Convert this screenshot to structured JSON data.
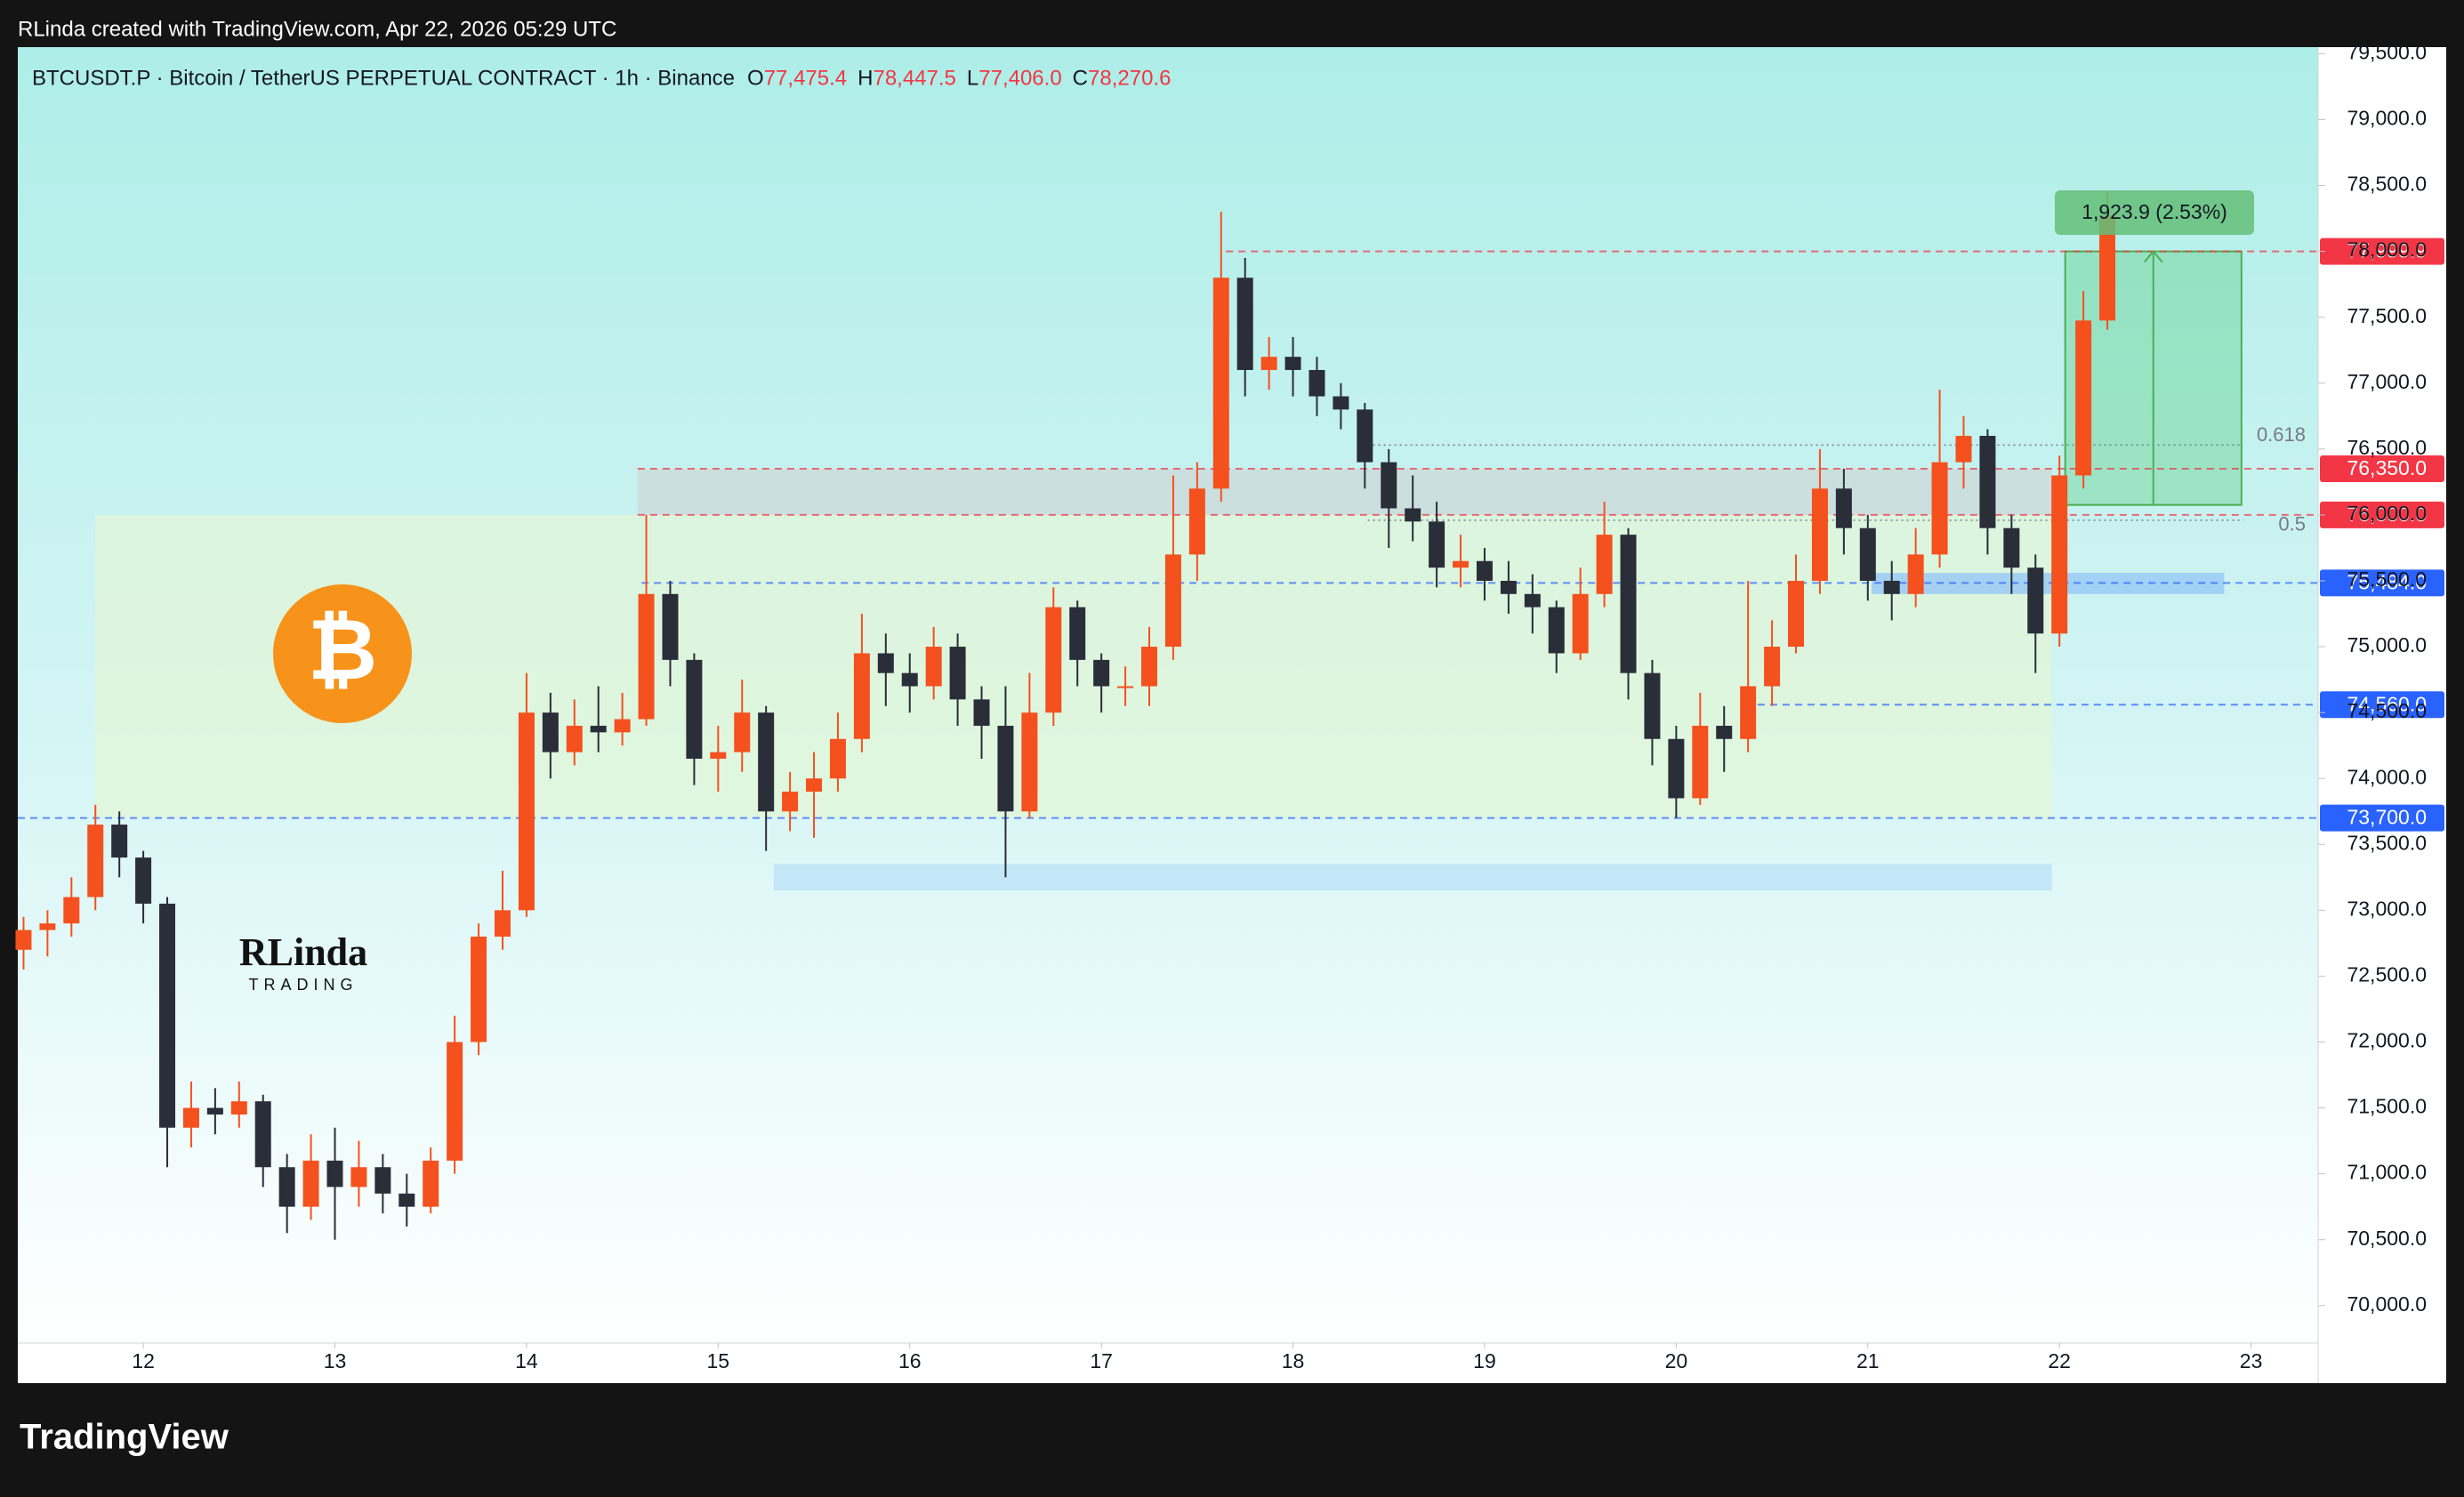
{
  "header": {
    "attribution": "RLinda created with TradingView.com, Apr 22, 2026 05:29 UTC",
    "symbol": "BTCUSDT.P · Bitcoin / TetherUS PERPETUAL CONTRACT · 1h · Binance",
    "ohlc": [
      {
        "key": "O",
        "value": "77,475.4"
      },
      {
        "key": "H",
        "value": "78,447.5"
      },
      {
        "key": "L",
        "value": "77,406.0"
      },
      {
        "key": "C",
        "value": "78,270.6"
      }
    ]
  },
  "watermark": {
    "icon": "₿",
    "name": "RLinda",
    "sub": "TRADING"
  },
  "footer": {
    "logo": "TradingView"
  },
  "chart_data": {
    "type": "candlestick",
    "up_color": "#f4511e",
    "down_color": "#2a2e39",
    "xlim": [
      11.345,
      23.35
    ],
    "ylim": [
      69715,
      79550
    ],
    "xticks": [
      12,
      13,
      14,
      15,
      16,
      17,
      18,
      19,
      20,
      21,
      22,
      23
    ],
    "yticks": [
      {
        "value": 70000,
        "label": "70,000.0"
      },
      {
        "value": 70500,
        "label": "70,500.0"
      },
      {
        "value": 71000,
        "label": "71,000.0"
      },
      {
        "value": 71500,
        "label": "71,500.0"
      },
      {
        "value": 72000,
        "label": "72,000.0"
      },
      {
        "value": 72500,
        "label": "72,500.0"
      },
      {
        "value": 73000,
        "label": "73,000.0"
      },
      {
        "value": 73500,
        "label": "73,500.0"
      },
      {
        "value": 74000,
        "label": "74,000.0"
      },
      {
        "value": 74500,
        "label": "74,500.0"
      },
      {
        "value": 75000,
        "label": "75,000.0"
      },
      {
        "value": 75500,
        "label": "75,500.0"
      },
      {
        "value": 76000,
        "label": "76,000.0"
      },
      {
        "value": 76500,
        "label": "76,500.0"
      },
      {
        "value": 77000,
        "label": "77,000.0"
      },
      {
        "value": 77500,
        "label": "77,500.0"
      },
      {
        "value": 78000,
        "label": "78,000.0"
      },
      {
        "value": 78500,
        "label": "78,500.0"
      },
      {
        "value": 79000,
        "label": "79,000.0"
      },
      {
        "value": 79500,
        "label": "79,500.0"
      }
    ],
    "x": [
      11.375,
      11.5,
      11.625,
      11.75,
      11.875,
      12.0,
      12.125,
      12.25,
      12.375,
      12.5,
      12.625,
      12.75,
      12.875,
      13.0,
      13.125,
      13.25,
      13.375,
      13.5,
      13.625,
      13.75,
      13.875,
      14.0,
      14.125,
      14.25,
      14.375,
      14.5,
      14.625,
      14.75,
      14.875,
      15.0,
      15.125,
      15.25,
      15.375,
      15.5,
      15.625,
      15.75,
      15.875,
      16.0,
      16.125,
      16.25,
      16.375,
      16.5,
      16.625,
      16.75,
      16.875,
      17.0,
      17.125,
      17.25,
      17.375,
      17.5,
      17.625,
      17.75,
      17.875,
      18.0,
      18.125,
      18.25,
      18.375,
      18.5,
      18.625,
      18.75,
      18.875,
      19.0,
      19.125,
      19.25,
      19.375,
      19.5,
      19.625,
      19.75,
      19.875,
      20.0,
      20.125,
      20.25,
      20.375,
      20.5,
      20.625,
      20.75,
      20.875,
      21.0,
      21.125,
      21.25,
      21.375,
      21.5,
      21.625,
      21.75,
      21.875,
      22.0,
      22.125,
      22.25
    ],
    "open": [
      72700,
      72850,
      72900,
      73100,
      73650,
      73400,
      73050,
      71350,
      71500,
      71450,
      71550,
      71050,
      70750,
      71100,
      70900,
      71050,
      70850,
      70750,
      71100,
      72000,
      72800,
      73000,
      74500,
      74200,
      74400,
      74350,
      74450,
      75400,
      74900,
      74150,
      74200,
      74500,
      73750,
      73900,
      74000,
      74300,
      74950,
      74800,
      74700,
      75000,
      74600,
      74400,
      73750,
      74500,
      75300,
      74900,
      74700,
      74700,
      75000,
      75700,
      76200,
      77800,
      77100,
      77200,
      77100,
      76900,
      76800,
      76400,
      76050,
      75950,
      75600,
      75650,
      75500,
      75400,
      75300,
      74950,
      75400,
      75850,
      74800,
      74300,
      73850,
      74400,
      74300,
      74700,
      75000,
      75500,
      76200,
      75900,
      75500,
      75400,
      75700,
      76400,
      76600,
      75900,
      75600,
      75100,
      76300,
      77475.4
    ],
    "high": [
      72950,
      73000,
      73250,
      73800,
      73750,
      73450,
      73100,
      71700,
      71650,
      71700,
      71600,
      71150,
      71300,
      71350,
      71250,
      71150,
      71000,
      71200,
      72200,
      72900,
      73300,
      74800,
      74650,
      74600,
      74700,
      74650,
      76000,
      75500,
      74950,
      74400,
      74750,
      74550,
      74050,
      74200,
      74500,
      75250,
      75100,
      74950,
      75150,
      75100,
      74700,
      74700,
      74800,
      75450,
      75350,
      74950,
      74850,
      75150,
      76300,
      76400,
      78300,
      77950,
      77350,
      77350,
      77200,
      77000,
      76850,
      76500,
      76300,
      76100,
      75850,
      75750,
      75650,
      75550,
      75350,
      75600,
      76100,
      75900,
      74900,
      74400,
      74650,
      74550,
      75500,
      75200,
      75700,
      76500,
      76350,
      76000,
      75650,
      75900,
      76950,
      76750,
      76650,
      76000,
      75700,
      76450,
      77700,
      78447.5
    ],
    "low": [
      72550,
      72650,
      72800,
      73000,
      73250,
      72900,
      71050,
      71200,
      71300,
      71350,
      70900,
      70550,
      70650,
      70500,
      70750,
      70700,
      70600,
      70700,
      71000,
      71900,
      72700,
      72950,
      74000,
      74100,
      74200,
      74250,
      74400,
      74700,
      73950,
      73900,
      74050,
      73450,
      73600,
      73550,
      73900,
      74200,
      74550,
      74500,
      74600,
      74400,
      74150,
      73250,
      73700,
      74400,
      74700,
      74500,
      74550,
      74550,
      74900,
      75500,
      76100,
      76900,
      76950,
      76900,
      76750,
      76650,
      76200,
      75750,
      75800,
      75450,
      75450,
      75350,
      75250,
      75100,
      74800,
      74900,
      75300,
      74600,
      74100,
      73700,
      73800,
      74050,
      74200,
      74550,
      74950,
      75400,
      75700,
      75350,
      75200,
      75300,
      75600,
      76200,
      75700,
      75400,
      74800,
      75000,
      76200,
      77406
    ],
    "close": [
      72850,
      72900,
      73100,
      73650,
      73400,
      73050,
      71350,
      71500,
      71450,
      71550,
      71050,
      70750,
      71100,
      70900,
      71050,
      70850,
      70750,
      71100,
      72000,
      72800,
      73000,
      74500,
      74200,
      74400,
      74350,
      74450,
      75400,
      74900,
      74150,
      74200,
      74500,
      73750,
      73900,
      74000,
      74300,
      74950,
      74800,
      74700,
      75000,
      74600,
      74400,
      73750,
      74500,
      75300,
      74900,
      74700,
      74700,
      75000,
      75700,
      76200,
      77800,
      77100,
      77200,
      77100,
      76900,
      76800,
      76400,
      76050,
      75950,
      75600,
      75650,
      75500,
      75400,
      75300,
      74950,
      75400,
      75850,
      74800,
      74300,
      73850,
      74400,
      74300,
      74700,
      75000,
      75500,
      76200,
      75900,
      75500,
      75400,
      75700,
      76400,
      76600,
      75900,
      75600,
      75100,
      76300,
      77475.4,
      78270.6
    ],
    "zones": [
      {
        "from": 73700,
        "to": 76000,
        "x": [
          11.75,
          21.96
        ],
        "color": "rgba(225,245,215,0.75)"
      },
      {
        "from": 76000,
        "to": 76350,
        "x": [
          14.58,
          21.96
        ],
        "color": "rgba(205,210,210,0.6)"
      },
      {
        "from": 73150,
        "to": 73350,
        "x": [
          15.29,
          21.96
        ],
        "color": "rgba(185,225,245,0.75)"
      },
      {
        "from": 75400,
        "to": 75560,
        "x": [
          21.02,
          22.86
        ],
        "color": "rgba(150,200,245,0.8)"
      }
    ],
    "levels": [
      {
        "value": 77999.9,
        "label": "77,999.9",
        "x": 17.65,
        "color": "#f23645"
      },
      {
        "value": 76350,
        "label": "76,350.0",
        "x": 14.58,
        "color": "#f23645"
      },
      {
        "value": 76000,
        "label": "76,000.0",
        "x": 14.58,
        "color": "#f23645"
      },
      {
        "value": 75484,
        "label": "75,484.0",
        "x": 14.6,
        "color": "#2962ff"
      },
      {
        "value": 74560,
        "label": "74,560.0",
        "x": 20.36,
        "color": "#2962ff"
      },
      {
        "value": 73700,
        "label": "73,700.0",
        "x": 11.345,
        "color": "#2962ff"
      }
    ],
    "fib": [
      {
        "value": 76530,
        "label": "0.618",
        "x": [
          18.39,
          22.96
        ]
      },
      {
        "value": 75960,
        "label": "0.5",
        "x": [
          18.39,
          22.96
        ]
      }
    ],
    "measure": {
      "from": 76076,
      "to": 77999.9,
      "x": [
        22.03,
        22.95
      ],
      "label": "1,923.9 (2.53%)"
    }
  }
}
